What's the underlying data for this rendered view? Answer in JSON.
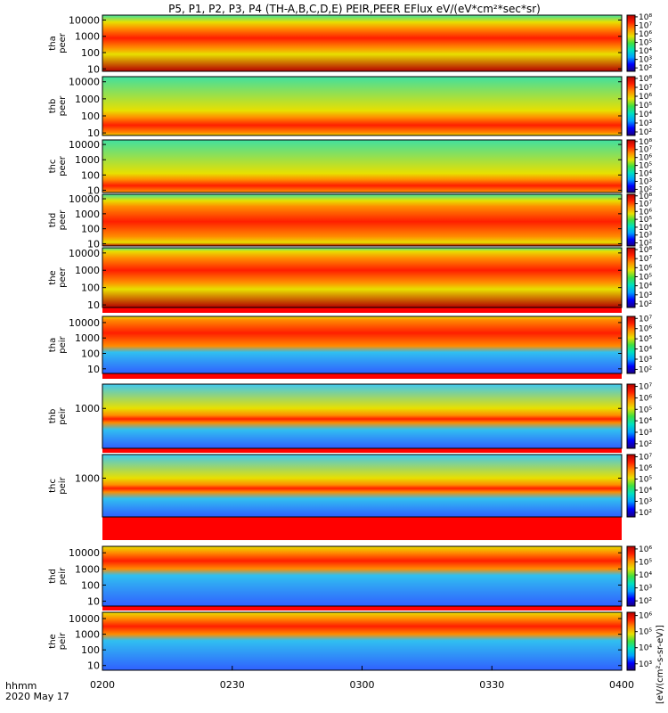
{
  "title": "P5, P1, P2, P3, P4 (TH-A,B,C,D,E) PEIR,PEER EFlux eV/(eV*cm²*sec*sr)",
  "time_label": "hhmm",
  "date_label": "2020 May 17",
  "colorbar_units_label": "[eV/(cm²-s-sr-eV)]",
  "colors": {
    "spectrum": [
      "#1a0080",
      "#0000ff",
      "#00a0ff",
      "#00e0c0",
      "#40e040",
      "#e8e000",
      "#ff8c00",
      "#ff1e00",
      "#b40000"
    ],
    "gap_band": "#ff0000"
  },
  "chart_data": {
    "type": "heatmap",
    "x_axis": {
      "range": [
        "0200",
        "0400"
      ],
      "ticks": [
        "0200",
        "0230",
        "0300",
        "0330",
        "0400"
      ]
    },
    "panels": [
      {
        "probe": "tha",
        "species": "peer",
        "y_scale": "log",
        "y_ticks": [
          "10",
          "100",
          "1000",
          "10000"
        ],
        "colorbar_ticks": [
          "10²",
          "10³",
          "10⁴",
          "10⁵",
          "10⁶",
          "10⁷",
          "10⁸"
        ],
        "peak_band_ev": [
          200,
          3000
        ],
        "peak_level": "1e7-1e8"
      },
      {
        "probe": "thb",
        "species": "peer",
        "y_scale": "log",
        "y_ticks": [
          "10",
          "100",
          "1000",
          "10000"
        ],
        "colorbar_ticks": [
          "10²",
          "10³",
          "10⁴",
          "10⁵",
          "10⁶",
          "10⁷",
          "10⁸"
        ],
        "peak_band_ev": [
          10,
          80
        ],
        "peak_level": "1e8"
      },
      {
        "probe": "thc",
        "species": "peer",
        "y_scale": "log",
        "y_ticks": [
          "10",
          "100",
          "1000",
          "10000"
        ],
        "colorbar_ticks": [
          "10²",
          "10³",
          "10⁴",
          "10⁵",
          "10⁶",
          "10⁷",
          "10⁸"
        ],
        "peak_band_ev": [
          8,
          50
        ],
        "peak_level": "1e8"
      },
      {
        "probe": "thd",
        "species": "peer",
        "y_scale": "log",
        "y_ticks": [
          "10",
          "100",
          "1000",
          "10000"
        ],
        "colorbar_ticks": [
          "10²",
          "10³",
          "10⁴",
          "10⁵",
          "10⁶",
          "10⁷",
          "10⁸"
        ],
        "peak_band_ev": [
          30,
          3000
        ],
        "peak_level": "1e7-1e8"
      },
      {
        "probe": "the",
        "species": "peer",
        "y_scale": "log",
        "y_ticks": [
          "10",
          "100",
          "1000",
          "10000"
        ],
        "colorbar_ticks": [
          "10²",
          "10³",
          "10⁴",
          "10⁵",
          "10⁶",
          "10⁷",
          "10⁸"
        ],
        "peak_band_ev": [
          200,
          5000
        ],
        "peak_level": "1e7-1e8"
      },
      {
        "probe": "tha",
        "species": "peir",
        "y_scale": "log",
        "y_ticks": [
          "10",
          "100",
          "1000",
          "10000"
        ],
        "colorbar_ticks": [
          "10²",
          "10³",
          "10⁴",
          "10⁵",
          "10⁶",
          "10⁷"
        ],
        "peak_band_ev": [
          300,
          15000
        ],
        "peak_level": "1e6-1e7"
      },
      {
        "probe": "thb",
        "species": "peir",
        "y_scale": "log",
        "y_ticks": [
          "1000"
        ],
        "colorbar_ticks": [
          "10²",
          "10³",
          "10⁴",
          "10⁵",
          "10⁶",
          "10⁷"
        ],
        "peak_band_ev": [
          150,
          400
        ],
        "peak_level": "1e7"
      },
      {
        "probe": "thc",
        "species": "peir",
        "y_scale": "log",
        "y_ticks": [
          "1000"
        ],
        "colorbar_ticks": [
          "10²",
          "10³",
          "10⁴",
          "10⁵",
          "10⁶",
          "10⁷"
        ],
        "peak_band_ev": [
          150,
          400
        ],
        "peak_level": "1e7"
      },
      {
        "probe": "thd",
        "species": "peir",
        "y_scale": "log",
        "y_ticks": [
          "10",
          "100",
          "1000",
          "10000"
        ],
        "colorbar_ticks": [
          "10²",
          "10³",
          "10⁴",
          "10⁵",
          "10⁶"
        ],
        "peak_band_ev": [
          1000,
          10000
        ],
        "peak_level": "1e5-1e6"
      },
      {
        "probe": "the",
        "species": "peir",
        "y_scale": "log",
        "y_ticks": [
          "10",
          "100",
          "1000",
          "10000"
        ],
        "colorbar_ticks": [
          "10³",
          "10⁴",
          "10⁵",
          "10⁶"
        ],
        "peak_band_ev": [
          1000,
          10000
        ],
        "peak_level": "1e5-1e6"
      }
    ]
  }
}
